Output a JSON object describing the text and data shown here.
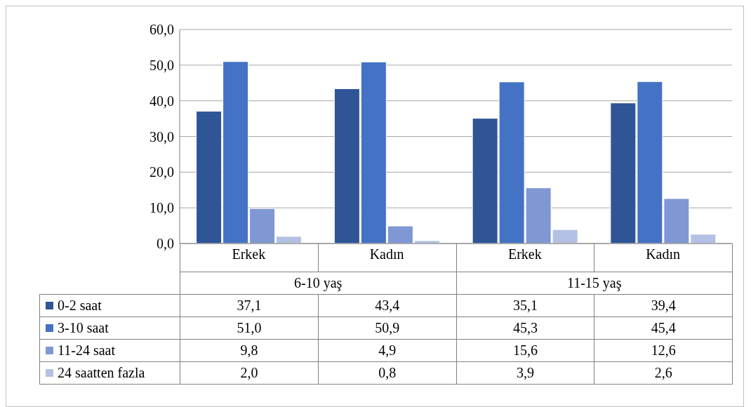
{
  "chart_data": {
    "type": "bar",
    "categories": [
      "Erkek",
      "Kadın",
      "Erkek",
      "Kadın"
    ],
    "annotations": [
      "6-10 yaş",
      "11-15 yaş"
    ],
    "series": [
      {
        "name": "0-2 saat",
        "color": "#2f5597",
        "values": [
          37.1,
          43.4,
          35.1,
          39.4
        ],
        "value_labels": [
          "37,1",
          "43,4",
          "35,1",
          "39,4"
        ]
      },
      {
        "name": "3-10 saat",
        "color": "#4472c4",
        "values": [
          51.0,
          50.9,
          45.3,
          45.4
        ],
        "value_labels": [
          "51,0",
          "50,9",
          "45,3",
          "45,4"
        ]
      },
      {
        "name": "11-24 saat",
        "color": "#7f97d3",
        "values": [
          9.8,
          4.9,
          15.6,
          12.6
        ],
        "value_labels": [
          "9,8",
          "4,9",
          "15,6",
          "12,6"
        ]
      },
      {
        "name": "24 saatten fazla",
        "color": "#b4c1e4",
        "values": [
          2.0,
          0.8,
          3.9,
          2.6
        ],
        "value_labels": [
          "2,0",
          "0,8",
          "3,9",
          "2,6"
        ]
      }
    ],
    "ylim": [
      0,
      60
    ],
    "yticks": [
      {
        "value": 0,
        "label": "0,0"
      },
      {
        "value": 10,
        "label": "10,0"
      },
      {
        "value": 20,
        "label": "20,0"
      },
      {
        "value": 30,
        "label": "30,0"
      },
      {
        "value": 40,
        "label": "40,0"
      },
      {
        "value": 50,
        "label": "50,0"
      },
      {
        "value": 60,
        "label": "60,0"
      }
    ],
    "grid": "y",
    "legend": "bottom"
  }
}
